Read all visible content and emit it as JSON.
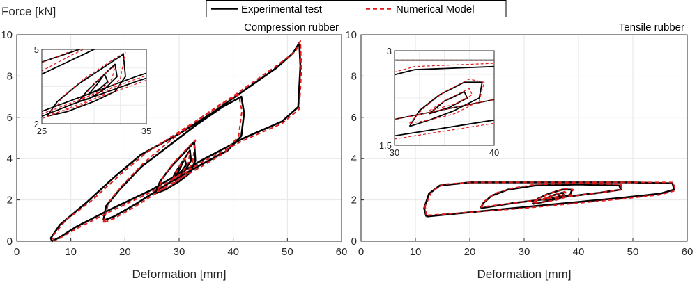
{
  "figure": {
    "ylabel": "Force [kN]",
    "legend": {
      "position": "top-center",
      "entries": [
        {
          "label": "Experimental test",
          "color": "#000000",
          "style": "solid"
        },
        {
          "label": "Numerical Model",
          "color": "#e31a1c",
          "style": "dashed"
        }
      ]
    }
  },
  "chart_data": [
    {
      "type": "line",
      "title": "Compression rubber",
      "xlabel": "Deformation [mm]",
      "ylabel": "Force [kN]",
      "xlim": [
        0,
        60
      ],
      "ylim": [
        0,
        10
      ],
      "xticks": [
        "0",
        "10",
        "20",
        "30",
        "40",
        "50",
        "60"
      ],
      "yticks": [
        "0",
        "2",
        "4",
        "6",
        "8",
        "10"
      ],
      "grid": true,
      "series": [
        {
          "name": "Experimental test",
          "loops": [
            [
              [
                6.5,
                0
              ],
              [
                6.3,
                0.15
              ],
              [
                8,
                0.8
              ],
              [
                13,
                1.9
              ],
              [
                18,
                3.1
              ],
              [
                23,
                4.2
              ],
              [
                30,
                5.2
              ],
              [
                36,
                6.2
              ],
              [
                42,
                7.3
              ],
              [
                48,
                8.4
              ],
              [
                51,
                9.1
              ],
              [
                52.2,
                9.6
              ],
              [
                52.4,
                8.5
              ],
              [
                52,
                6.5
              ],
              [
                49,
                5.8
              ],
              [
                42,
                5.0
              ],
              [
                34,
                3.9
              ],
              [
                25,
                2.5
              ],
              [
                17,
                1.5
              ],
              [
                11,
                0.7
              ],
              [
                8,
                0.2
              ],
              [
                6.5,
                0
              ]
            ],
            [
              [
                16,
                1.0
              ],
              [
                16.5,
                1.7
              ],
              [
                19,
                2.5
              ],
              [
                23,
                3.6
              ],
              [
                28,
                4.6
              ],
              [
                33,
                5.6
              ],
              [
                38,
                6.5
              ],
              [
                41.5,
                7.0
              ],
              [
                42,
                6.2
              ],
              [
                41.5,
                5.1
              ],
              [
                39,
                4.4
              ],
              [
                34,
                3.7
              ],
              [
                28,
                2.8
              ],
              [
                22,
                1.8
              ],
              [
                18,
                1.2
              ],
              [
                16,
                1.0
              ]
            ],
            [
              [
                25.5,
                2.3
              ],
              [
                26.5,
                2.9
              ],
              [
                28.5,
                3.6
              ],
              [
                31,
                4.3
              ],
              [
                32.8,
                4.8
              ],
              [
                33,
                3.9
              ],
              [
                32,
                3.3
              ],
              [
                30,
                2.9
              ],
              [
                27.5,
                2.5
              ],
              [
                25.5,
                2.3
              ]
            ],
            [
              [
                28.5,
                2.9
              ],
              [
                29.5,
                3.4
              ],
              [
                31,
                4.0
              ],
              [
                32,
                4.4
              ],
              [
                32.2,
                3.9
              ],
              [
                31,
                3.4
              ],
              [
                29.5,
                3.0
              ],
              [
                28.5,
                2.9
              ]
            ],
            [
              [
                29.5,
                3.2
              ],
              [
                30.3,
                3.6
              ],
              [
                31,
                4.0
              ],
              [
                31.3,
                3.7
              ],
              [
                30.5,
                3.4
              ],
              [
                29.5,
                3.2
              ]
            ]
          ]
        },
        {
          "name": "Numerical Model",
          "loops": [
            [
              [
                7,
                0
              ],
              [
                6.5,
                0.2
              ],
              [
                9,
                1.0
              ],
              [
                14,
                2.0
              ],
              [
                19,
                3.2
              ],
              [
                24,
                4.3
              ],
              [
                30,
                5.3
              ],
              [
                36,
                6.3
              ],
              [
                42,
                7.4
              ],
              [
                48,
                8.5
              ],
              [
                51.5,
                9.2
              ],
              [
                52.4,
                9.7
              ],
              [
                52.6,
                8.3
              ],
              [
                52.2,
                6.4
              ],
              [
                49,
                5.7
              ],
              [
                42,
                4.9
              ],
              [
                34,
                3.8
              ],
              [
                25,
                2.4
              ],
              [
                17,
                1.4
              ],
              [
                11,
                0.6
              ],
              [
                8,
                0.15
              ],
              [
                7,
                0
              ]
            ],
            [
              [
                16,
                0.9
              ],
              [
                17,
                1.9
              ],
              [
                19.5,
                2.7
              ],
              [
                23.5,
                3.8
              ],
              [
                28,
                4.8
              ],
              [
                33,
                5.8
              ],
              [
                38,
                6.7
              ],
              [
                41,
                7.1
              ],
              [
                41.6,
                6.3
              ],
              [
                41,
                5.1
              ],
              [
                38.5,
                4.3
              ],
              [
                34,
                3.6
              ],
              [
                28,
                2.7
              ],
              [
                22,
                1.7
              ],
              [
                18,
                1.1
              ],
              [
                16,
                0.9
              ]
            ],
            [
              [
                26,
                2.4
              ],
              [
                27,
                3.1
              ],
              [
                29,
                3.8
              ],
              [
                31.5,
                4.5
              ],
              [
                33,
                4.9
              ],
              [
                32.5,
                3.8
              ],
              [
                31,
                3.2
              ],
              [
                28.5,
                2.7
              ],
              [
                26,
                2.4
              ]
            ],
            [
              [
                28.8,
                3.0
              ],
              [
                30,
                3.6
              ],
              [
                31.5,
                4.2
              ],
              [
                32,
                4.3
              ],
              [
                31.7,
                3.8
              ],
              [
                30.5,
                3.3
              ],
              [
                28.8,
                3.0
              ]
            ]
          ]
        }
      ],
      "inset": {
        "xlim": [
          25,
          35
        ],
        "ylim": [
          2,
          5
        ],
        "xticks": [
          "25",
          "35"
        ],
        "yticks": [
          "2",
          "5"
        ]
      }
    },
    {
      "type": "line",
      "title": "Tensile rubber",
      "xlabel": "Deformation [mm]",
      "xlim": [
        0,
        60
      ],
      "ylim": [
        0,
        10
      ],
      "xticks": [
        "0",
        "10",
        "20",
        "30",
        "40",
        "50",
        "60"
      ],
      "yticks": [
        "0",
        "2",
        "4",
        "6",
        "8",
        "10"
      ],
      "grid": true,
      "series": [
        {
          "name": "Experimental test",
          "loops": [
            [
              [
                12,
                1.2
              ],
              [
                11.6,
                1.6
              ],
              [
                12.5,
                2.3
              ],
              [
                14.5,
                2.7
              ],
              [
                20,
                2.85
              ],
              [
                30,
                2.85
              ],
              [
                40,
                2.85
              ],
              [
                50,
                2.85
              ],
              [
                57.3,
                2.8
              ],
              [
                57.6,
                2.5
              ],
              [
                55,
                2.3
              ],
              [
                48,
                2.1
              ],
              [
                40,
                1.9
              ],
              [
                30,
                1.65
              ],
              [
                20,
                1.4
              ],
              [
                12,
                1.2
              ]
            ],
            [
              [
                22,
                1.6
              ],
              [
                22.5,
                1.85
              ],
              [
                24,
                2.2
              ],
              [
                27,
                2.5
              ],
              [
                32,
                2.7
              ],
              [
                40,
                2.75
              ],
              [
                47.5,
                2.7
              ],
              [
                47.8,
                2.5
              ],
              [
                44,
                2.35
              ],
              [
                36,
                2.1
              ],
              [
                28,
                1.85
              ],
              [
                22,
                1.6
              ]
            ],
            [
              [
                31.5,
                1.8
              ],
              [
                32.5,
                2.05
              ],
              [
                34.5,
                2.3
              ],
              [
                37,
                2.5
              ],
              [
                38.8,
                2.5
              ],
              [
                38.5,
                2.25
              ],
              [
                36,
                2.05
              ],
              [
                33.5,
                1.9
              ],
              [
                31.5,
                1.8
              ]
            ],
            [
              [
                33.5,
                2.0
              ],
              [
                35,
                2.2
              ],
              [
                37,
                2.35
              ],
              [
                37.3,
                2.25
              ],
              [
                35.5,
                2.1
              ],
              [
                33.5,
                2.0
              ]
            ]
          ]
        },
        {
          "name": "Numerical Model",
          "loops": [
            [
              [
                12,
                1.25
              ],
              [
                11.8,
                1.7
              ],
              [
                13,
                2.4
              ],
              [
                15,
                2.75
              ],
              [
                20,
                2.85
              ],
              [
                30,
                2.85
              ],
              [
                40,
                2.85
              ],
              [
                50,
                2.85
              ],
              [
                57.5,
                2.85
              ],
              [
                57.8,
                2.45
              ],
              [
                55,
                2.25
              ],
              [
                48,
                2.05
              ],
              [
                40,
                1.85
              ],
              [
                30,
                1.6
              ],
              [
                20,
                1.4
              ],
              [
                12,
                1.25
              ]
            ],
            [
              [
                22,
                1.65
              ],
              [
                22.8,
                1.95
              ],
              [
                24.5,
                2.3
              ],
              [
                27.5,
                2.55
              ],
              [
                32,
                2.75
              ],
              [
                40,
                2.8
              ],
              [
                47.8,
                2.75
              ],
              [
                48,
                2.5
              ],
              [
                44,
                2.35
              ],
              [
                36,
                2.1
              ],
              [
                28,
                1.85
              ],
              [
                22,
                1.65
              ]
            ],
            [
              [
                31.5,
                1.85
              ],
              [
                33,
                2.1
              ],
              [
                35,
                2.35
              ],
              [
                37.5,
                2.55
              ],
              [
                39,
                2.5
              ],
              [
                38.5,
                2.2
              ],
              [
                36,
                2.0
              ],
              [
                33.5,
                1.9
              ],
              [
                31.5,
                1.85
              ]
            ],
            [
              [
                33.5,
                2.05
              ],
              [
                35.5,
                2.25
              ],
              [
                37.5,
                2.4
              ],
              [
                37.8,
                2.3
              ],
              [
                36,
                2.15
              ],
              [
                33.5,
                2.05
              ]
            ]
          ]
        }
      ],
      "inset": {
        "xlim": [
          30,
          40
        ],
        "ylim": [
          1.5,
          3
        ],
        "xticks": [
          "30",
          "40"
        ],
        "yticks": [
          "1.5",
          "3"
        ]
      }
    }
  ]
}
